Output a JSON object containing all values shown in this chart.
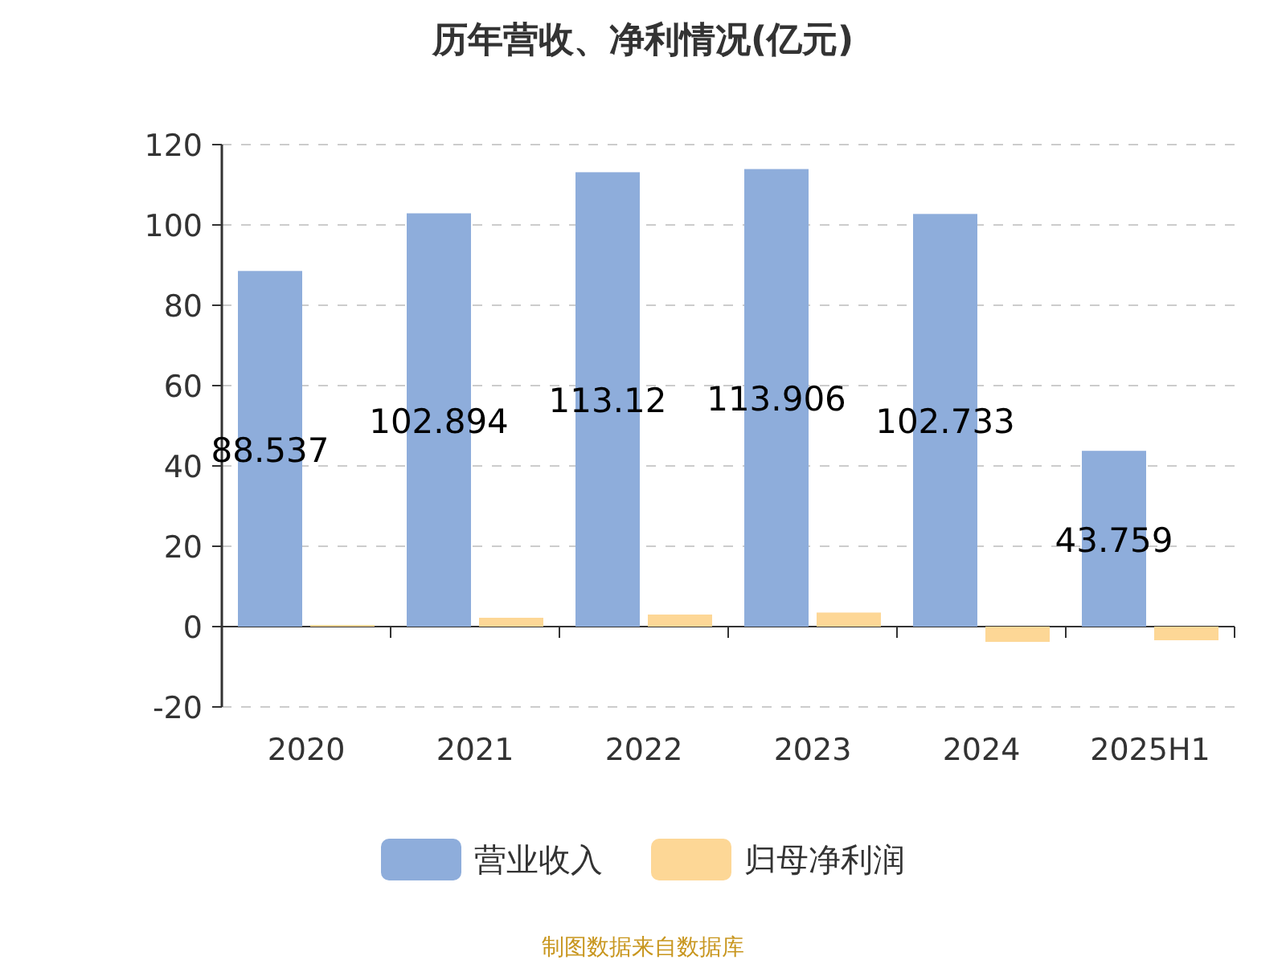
{
  "chart_data": {
    "type": "bar",
    "title": "历年营收、净利情况(亿元)",
    "categories": [
      "2020",
      "2021",
      "2022",
      "2023",
      "2024",
      "2025H1"
    ],
    "series": [
      {
        "name": "营业收入",
        "color": "#8eaddb",
        "values": [
          88.537,
          102.894,
          113.12,
          113.906,
          102.733,
          43.759
        ],
        "value_labels": [
          "88.537",
          "102.894",
          "113.12",
          "113.906",
          "102.733",
          "43.759"
        ]
      },
      {
        "name": "归母净利润",
        "color": "#fdd796",
        "values": [
          0.4,
          2.2,
          3.0,
          3.5,
          -3.8,
          -3.4
        ]
      }
    ],
    "ylim": [
      -20,
      120
    ],
    "yticks": [
      -20,
      0,
      20,
      40,
      60,
      80,
      100,
      120
    ],
    "grid": "y",
    "legend": "bottom",
    "annotations": [
      "制图数据来自数据库"
    ]
  }
}
